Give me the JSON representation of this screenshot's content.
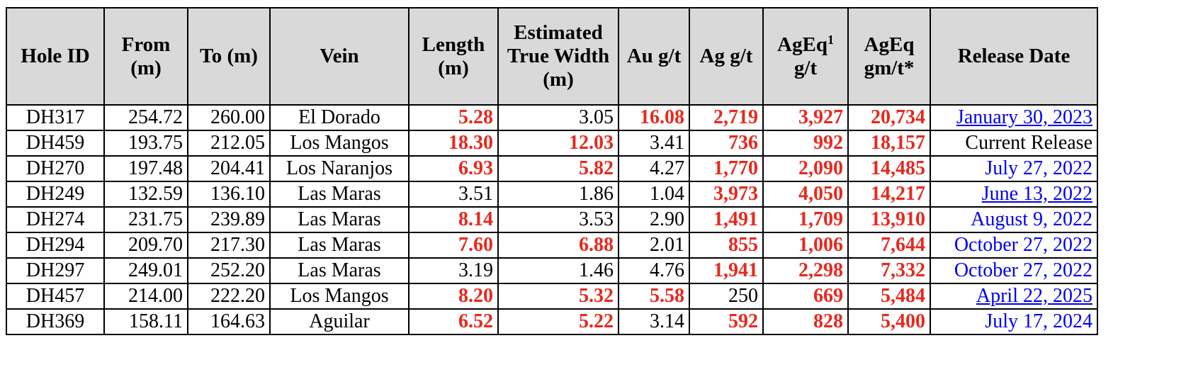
{
  "columns": [
    {
      "label": "Hole ID"
    },
    {
      "label": "From (m)"
    },
    {
      "label": "To (m)"
    },
    {
      "label": "Vein"
    },
    {
      "label": "Length (m)"
    },
    {
      "label": "Estimated True Width (m)"
    },
    {
      "label": "Au g/t"
    },
    {
      "label": "Ag g/t"
    },
    {
      "label": "AgEq",
      "sup": "1",
      "suffix": "g/t"
    },
    {
      "label": "AgEq gm/t*"
    },
    {
      "label": "Release Date"
    }
  ],
  "rows": [
    {
      "hole": "DH317",
      "from": "254.72",
      "to": "260.00",
      "vein": "El Dorado",
      "length": "5.28",
      "width": "3.05",
      "au": "16.08",
      "ag": "2,719",
      "ageq": "3,927",
      "ageq_gm": "20,734",
      "date": "January 30, 2023",
      "hl": {
        "length": true,
        "width": false,
        "au": true,
        "ag": true,
        "ageq": true,
        "ageq_gm": true
      },
      "link": true,
      "underline": true
    },
    {
      "hole": "DH459",
      "from": "193.75",
      "to": "212.05",
      "vein": "Los Mangos",
      "length": "18.30",
      "width": "12.03",
      "au": "3.41",
      "ag": "736",
      "ageq": "992",
      "ageq_gm": "18,157",
      "date": "Current Release",
      "hl": {
        "length": true,
        "width": true,
        "au": false,
        "ag": true,
        "ageq": true,
        "ageq_gm": true
      },
      "link": false,
      "underline": false
    },
    {
      "hole": "DH270",
      "from": "197.48",
      "to": "204.41",
      "vein": "Los Naranjos",
      "length": "6.93",
      "width": "5.82",
      "au": "4.27",
      "ag": "1,770",
      "ageq": "2,090",
      "ageq_gm": "14,485",
      "date": "July 27, 2022",
      "hl": {
        "length": true,
        "width": true,
        "au": false,
        "ag": true,
        "ageq": true,
        "ageq_gm": true
      },
      "link": true,
      "underline": false
    },
    {
      "hole": "DH249",
      "from": "132.59",
      "to": "136.10",
      "vein": "Las Maras",
      "length": "3.51",
      "width": "1.86",
      "au": "1.04",
      "ag": "3,973",
      "ageq": "4,050",
      "ageq_gm": "14,217",
      "date": "June 13, 2022",
      "hl": {
        "length": false,
        "width": false,
        "au": false,
        "ag": true,
        "ageq": true,
        "ageq_gm": true
      },
      "link": true,
      "underline": true
    },
    {
      "hole": "DH274",
      "from": "231.75",
      "to": "239.89",
      "vein": "Las Maras",
      "length": "8.14",
      "width": "3.53",
      "au": "2.90",
      "ag": "1,491",
      "ageq": "1,709",
      "ageq_gm": "13,910",
      "date": "August 9, 2022",
      "hl": {
        "length": true,
        "width": false,
        "au": false,
        "ag": true,
        "ageq": true,
        "ageq_gm": true
      },
      "link": true,
      "underline": false
    },
    {
      "hole": "DH294",
      "from": "209.70",
      "to": "217.30",
      "vein": "Las Maras",
      "length": "7.60",
      "width": "6.88",
      "au": "2.01",
      "ag": "855",
      "ageq": "1,006",
      "ageq_gm": "7,644",
      "date": "October 27, 2022",
      "hl": {
        "length": true,
        "width": true,
        "au": false,
        "ag": true,
        "ageq": true,
        "ageq_gm": true
      },
      "link": true,
      "underline": false
    },
    {
      "hole": "DH297",
      "from": "249.01",
      "to": "252.20",
      "vein": "Las Maras",
      "length": "3.19",
      "width": "1.46",
      "au": "4.76",
      "ag": "1,941",
      "ageq": "2,298",
      "ageq_gm": "7,332",
      "date": "October 27, 2022",
      "hl": {
        "length": false,
        "width": false,
        "au": false,
        "ag": true,
        "ageq": true,
        "ageq_gm": true
      },
      "link": true,
      "underline": false
    },
    {
      "hole": "DH457",
      "from": "214.00",
      "to": "222.20",
      "vein": "Los Mangos",
      "length": "8.20",
      "width": "5.32",
      "au": "5.58",
      "ag": "250",
      "ageq": "669",
      "ageq_gm": "5,484",
      "date": "April 22, 2025",
      "hl": {
        "length": true,
        "width": true,
        "au": true,
        "ag": false,
        "ageq": true,
        "ageq_gm": true
      },
      "link": true,
      "underline": true
    },
    {
      "hole": "DH369",
      "from": "158.11",
      "to": "164.63",
      "vein": "Aguilar",
      "length": "6.52",
      "width": "5.22",
      "au": "3.14",
      "ag": "592",
      "ageq": "828",
      "ageq_gm": "5,400",
      "date": "July 17, 2024",
      "hl": {
        "length": true,
        "width": true,
        "au": false,
        "ag": true,
        "ageq": true,
        "ageq_gm": true
      },
      "link": true,
      "underline": false
    }
  ],
  "colors": {
    "highlight": "#e8281e",
    "link": "#0000ee",
    "header_bg": "#d9d9d9"
  }
}
